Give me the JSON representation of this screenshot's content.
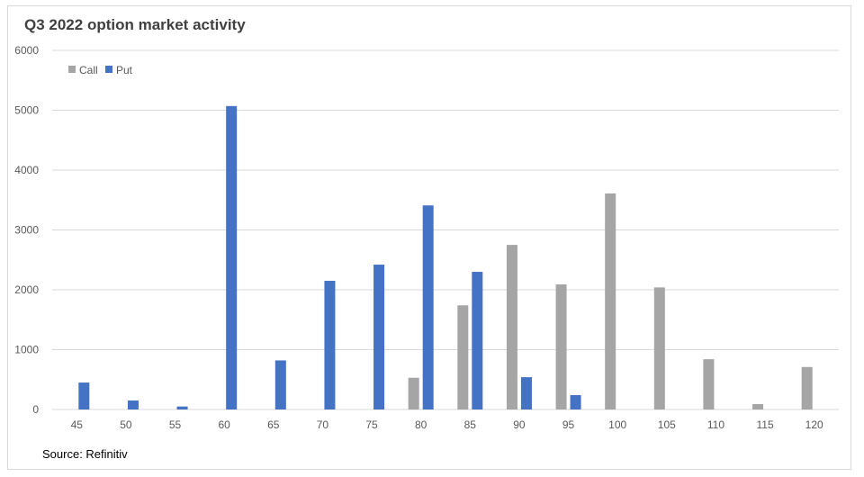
{
  "chart_data": {
    "type": "bar",
    "title": "Q3 2022 option market activity",
    "source": "Source: Refinitiv",
    "categories": [
      "45",
      "50",
      "55",
      "60",
      "65",
      "70",
      "75",
      "80",
      "85",
      "90",
      "95",
      "100",
      "105",
      "110",
      "115",
      "120"
    ],
    "series": [
      {
        "name": "Call",
        "color": "#a5a5a5",
        "values": [
          0,
          0,
          0,
          0,
          0,
          0,
          0,
          530,
          1740,
          2750,
          2090,
          3610,
          2040,
          840,
          90,
          710
        ]
      },
      {
        "name": "Put",
        "color": "#4472c4",
        "values": [
          450,
          150,
          50,
          5070,
          820,
          2150,
          2420,
          3410,
          2300,
          540,
          240,
          0,
          0,
          0,
          0,
          0
        ]
      }
    ],
    "ylim": [
      0,
      6000
    ],
    "yticks": [
      0,
      1000,
      2000,
      3000,
      4000,
      5000,
      6000
    ],
    "grid": true,
    "legend": "top-left"
  }
}
